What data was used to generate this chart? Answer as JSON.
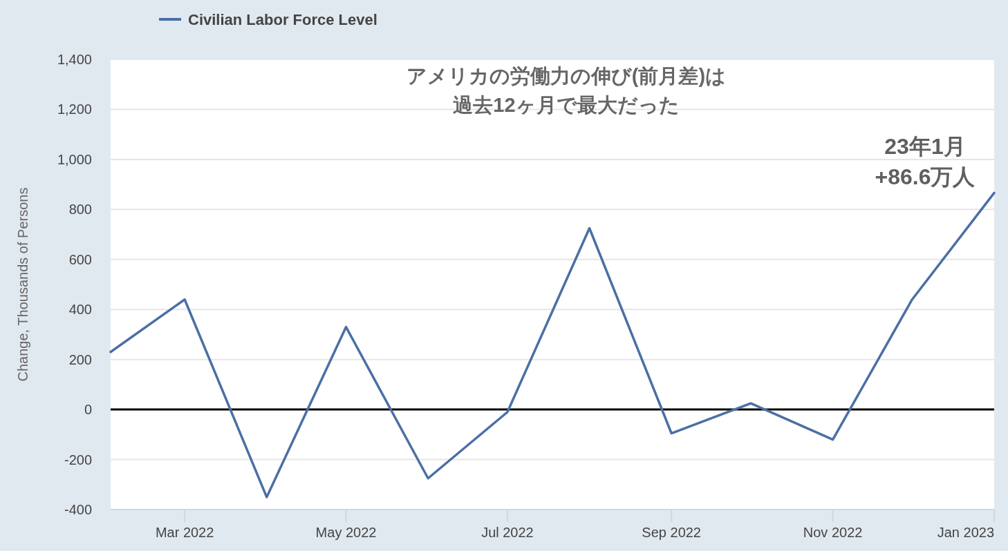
{
  "chart_data": {
    "type": "line",
    "title": "アメリカの労働力の伸び(前月差)は",
    "subtitle": "過去12ヶ月で最大だった",
    "ylabel": "Change, Thousands of Persons",
    "x": [
      "2022-02",
      "2022-03",
      "2022-04",
      "2022-05",
      "2022-06",
      "2022-07",
      "2022-08",
      "2022-09",
      "2022-10",
      "2022-11",
      "2022-12",
      "2023-01"
    ],
    "series": [
      {
        "name": "Civilian Labor Force Level",
        "color": "#4b6fa5",
        "values": [
          230,
          440,
          -350,
          330,
          -275,
          -10,
          725,
          -95,
          25,
          -120,
          440,
          866
        ]
      }
    ],
    "xlim": [
      "2022-02",
      "2023-01"
    ],
    "xticks": [
      {
        "value": "2022-03",
        "label": "Mar 2022"
      },
      {
        "value": "2022-05",
        "label": "May 2022"
      },
      {
        "value": "2022-07",
        "label": "Jul 2022"
      },
      {
        "value": "2022-09",
        "label": "Sep 2022"
      },
      {
        "value": "2022-11",
        "label": "Nov 2022"
      },
      {
        "value": "2023-01",
        "label": "Jan 2023"
      }
    ],
    "ylim": [
      -400,
      1400
    ],
    "yticks": [
      -400,
      -200,
      0,
      200,
      400,
      600,
      800,
      {
        "value": 1000,
        "label": "1,000"
      },
      {
        "value": 1200,
        "label": "1,200"
      },
      {
        "value": 1400,
        "label": "1,400"
      }
    ],
    "ref_lines": [
      {
        "axis": "y",
        "value": 0,
        "color": "#000000"
      }
    ],
    "annotations": [
      {
        "text": "23年1月\n+86.6万人",
        "x": "2023-01",
        "y": 866
      }
    ],
    "grid": "y",
    "legend": "top left"
  }
}
